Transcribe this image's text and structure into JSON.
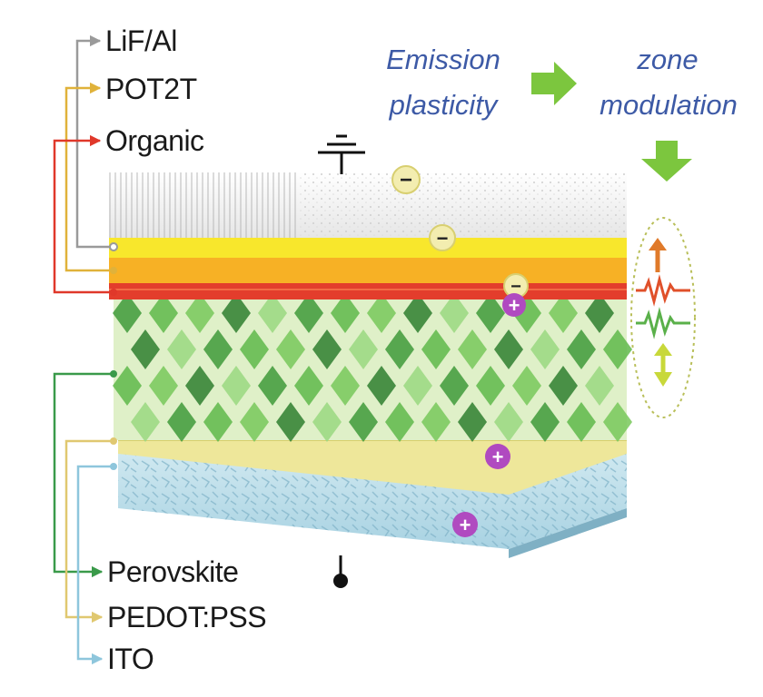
{
  "layers_top": [
    {
      "label": "LiF/Al",
      "color": "#9a9a9a"
    },
    {
      "label": "POT2T",
      "color": "#e0b23a"
    },
    {
      "label": "Organic",
      "color": "#e0382a"
    }
  ],
  "layers_bottom": [
    {
      "label": "Perovskite",
      "color": "#3a9a4a"
    },
    {
      "label": "PEDOT:PSS",
      "color": "#e0c870"
    },
    {
      "label": "ITO",
      "color": "#8ec6dc"
    }
  ],
  "emission": {
    "line1": "Emission",
    "line2": "plasticity"
  },
  "zone": {
    "line1": "zone",
    "line2": "modulation"
  },
  "charges": {
    "electron": "−",
    "hole": "+"
  },
  "colors": {
    "text_blue": "#3d5aa6",
    "arrow_green": "#7cc63e",
    "electron": "#f3edb0",
    "hole": "#b04ac0"
  }
}
